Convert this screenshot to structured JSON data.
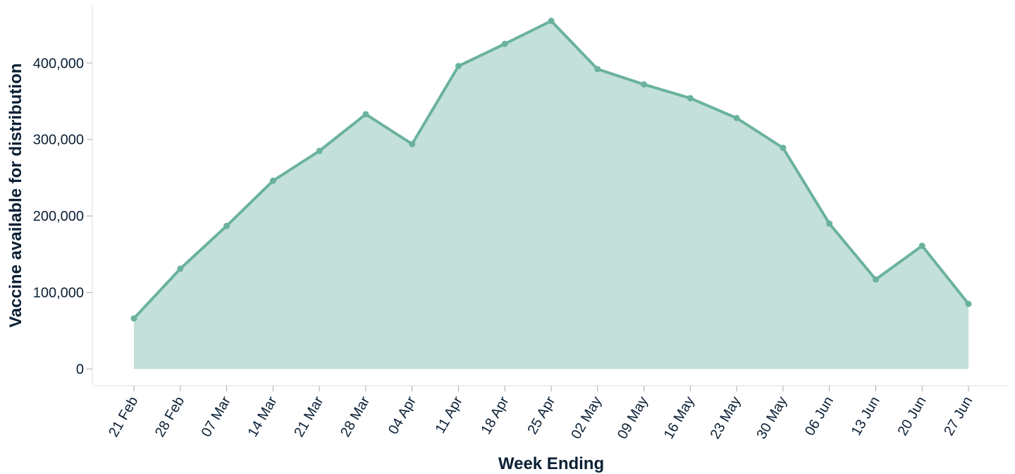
{
  "chart_data": {
    "type": "area",
    "x_label": "Week Ending",
    "y_label": "Vaccine available for distribution",
    "categories": [
      "21 Feb",
      "28 Feb",
      "07 Mar",
      "14 Mar",
      "21 Mar",
      "28 Mar",
      "04 Apr",
      "11 Apr",
      "18 Apr",
      "25 Apr",
      "02 May",
      "09 May",
      "16 May",
      "23 May",
      "30 May",
      "06 Jun",
      "13 Jun",
      "20 Jun",
      "27 Jun"
    ],
    "series": [
      {
        "name": "Vaccine available for distribution",
        "color": "#6ab29e",
        "fill": "#c3e0d9",
        "values": [
          66000,
          131000,
          187000,
          246000,
          285000,
          333000,
          294000,
          396000,
          425000,
          455000,
          392000,
          372000,
          354000,
          328000,
          289000,
          190000,
          117000,
          161000,
          85000
        ]
      }
    ],
    "ylim": [
      0,
      475000
    ],
    "yticks": [
      0,
      {
        "value": 100000,
        "label": "100,000"
      },
      {
        "value": 200000,
        "label": "200,000"
      },
      {
        "value": 300000,
        "label": "300,000"
      },
      {
        "value": 400000,
        "label": "400,000"
      }
    ],
    "grid": false
  }
}
